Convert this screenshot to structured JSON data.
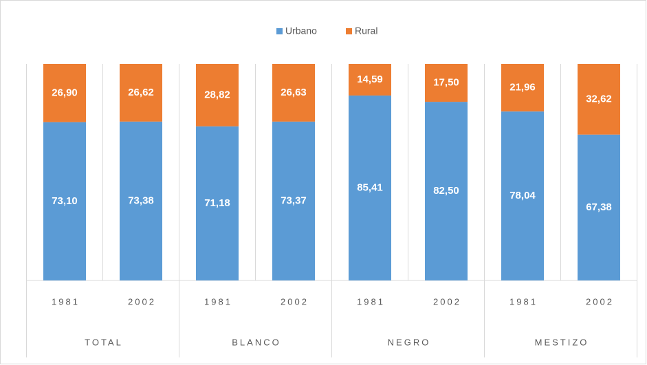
{
  "chart_data": {
    "type": "stacked_bar",
    "categories": [
      "1981",
      "2002",
      "1981",
      "2002",
      "1981",
      "2002",
      "1981",
      "2002"
    ],
    "groups": [
      "TOTAL",
      "BLANCO",
      "NEGRO",
      "MESTIZO"
    ],
    "series": [
      {
        "name": "Urbano",
        "color": "#5b9bd5",
        "values": [
          73.1,
          73.38,
          71.18,
          73.37,
          85.41,
          82.5,
          78.04,
          67.38
        ],
        "value_labels": [
          "73,10",
          "73,38",
          "71,18",
          "73,37",
          "85,41",
          "82,50",
          "78,04",
          "67,38"
        ]
      },
      {
        "name": "Rural",
        "color": "#ed7d31",
        "values": [
          26.9,
          26.62,
          28.82,
          26.63,
          14.59,
          17.5,
          21.96,
          32.62
        ],
        "value_labels": [
          "26,90",
          "26,62",
          "28,82",
          "26,63",
          "14,59",
          "17,50",
          "21,96",
          "32,62"
        ]
      }
    ],
    "ylim": [
      0,
      100
    ],
    "legend": "top"
  }
}
